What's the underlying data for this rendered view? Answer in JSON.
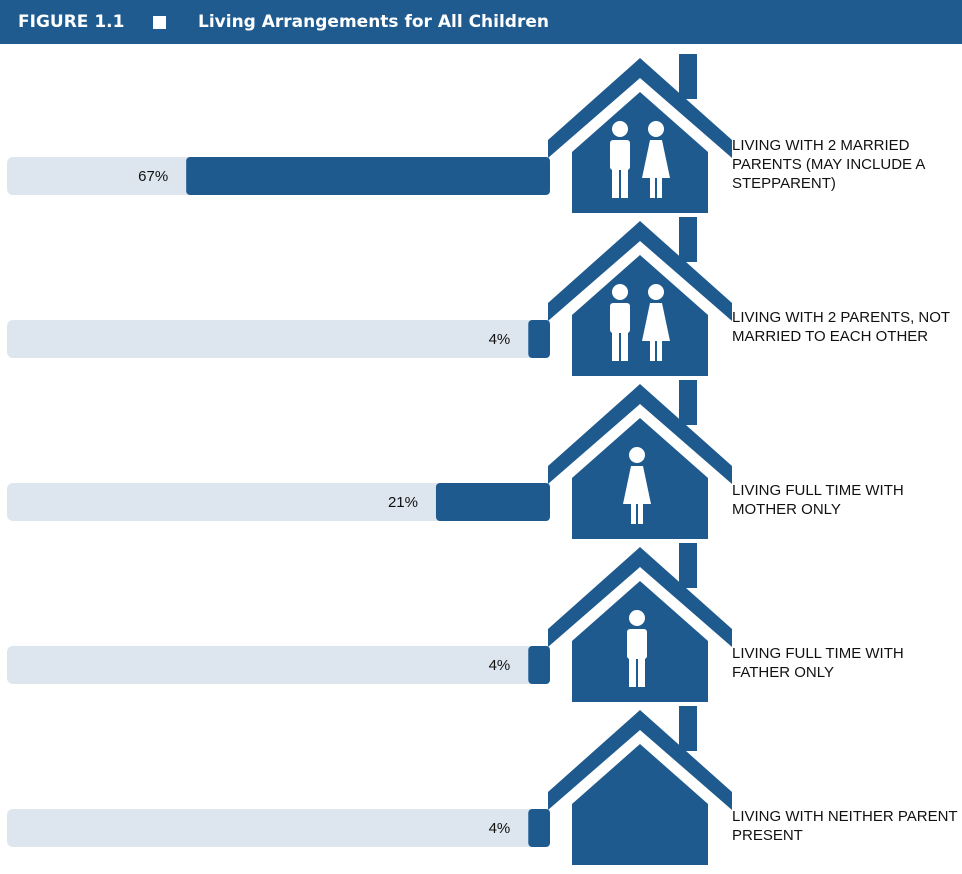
{
  "header": {
    "figure": "FIGURE 1.1",
    "title": "Living Arrangements for All Children"
  },
  "chart_data": {
    "type": "bar",
    "orientation": "horizontal",
    "categories": [
      "LIVING WITH 2 MARRIED PARENTS (MAY INCLUDE A STEPPARENT)",
      "LIVING WITH 2 PARENTS, NOT MARRIED TO EACH OTHER",
      "LIVING FULL TIME WITH MOTHER ONLY",
      "LIVING FULL TIME WITH FATHER ONLY",
      "LIVING WITH NEITHER PARENT PRESENT"
    ],
    "values": [
      67,
      4,
      21,
      4,
      4
    ],
    "value_labels": [
      "67%",
      "4%",
      "21%",
      "4%",
      "4%"
    ],
    "color": "#1f5a8e"
  }
}
